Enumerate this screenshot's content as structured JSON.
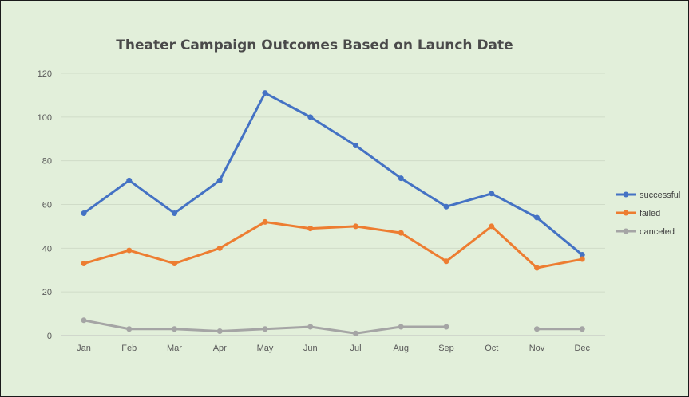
{
  "chart_data": {
    "type": "line",
    "title": "Theater Campaign Outcomes Based on Launch Date",
    "xlabel": "",
    "ylabel": "",
    "categories": [
      "Jan",
      "Feb",
      "Mar",
      "Apr",
      "May",
      "Jun",
      "Jul",
      "Aug",
      "Sep",
      "Oct",
      "Nov",
      "Dec"
    ],
    "ylim": [
      0,
      120
    ],
    "yticks": [
      0,
      20,
      40,
      60,
      80,
      100,
      120
    ],
    "grid": true,
    "legend_position": "right",
    "series": [
      {
        "name": "successful",
        "color": "#4472c4",
        "values": [
          56,
          71,
          56,
          71,
          111,
          100,
          87,
          72,
          59,
          65,
          54,
          37
        ]
      },
      {
        "name": "failed",
        "color": "#ed7d31",
        "values": [
          33,
          39,
          33,
          40,
          52,
          49,
          50,
          47,
          34,
          50,
          31,
          35
        ]
      },
      {
        "name": "canceled",
        "color": "#a5a5a5",
        "values": [
          7,
          3,
          3,
          2,
          3,
          4,
          1,
          4,
          4,
          null,
          3,
          3
        ]
      }
    ]
  }
}
